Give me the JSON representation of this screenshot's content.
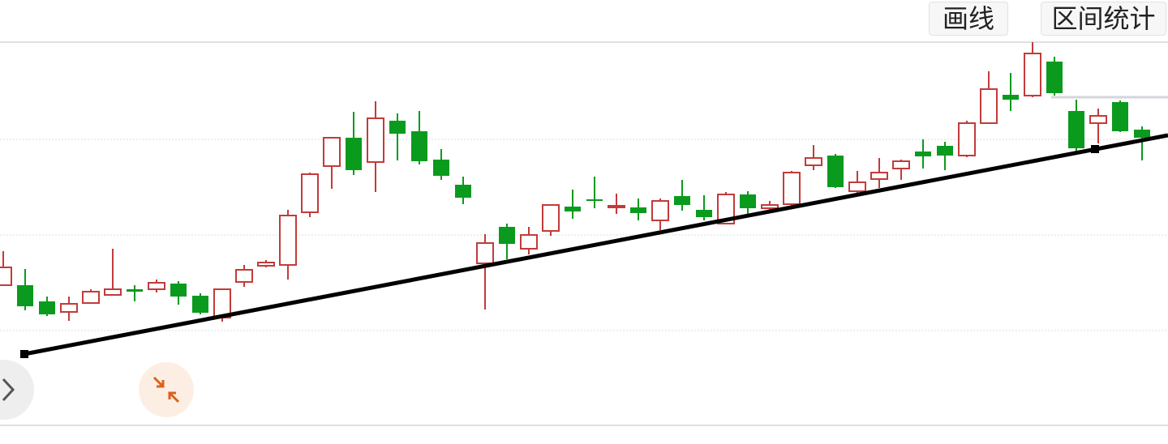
{
  "toolbar": {
    "draw_button": "画线",
    "range_button": "区间统计"
  },
  "chart_data": {
    "type": "candlestick",
    "ylim": [
      0,
      473
    ],
    "gridlines": [
      117,
      235,
      353
    ],
    "up_color": "#c23b3b",
    "down_color": "#0a9a1e",
    "open": [
      173,
      173,
      153,
      140,
      151,
      161,
      168,
      168,
      175,
      160,
      133,
      177,
      197,
      198,
      263,
      320,
      355,
      325,
      376,
      363,
      328,
      297,
      200,
      245,
      218,
      240,
      270,
      279,
      269,
      269,
      253,
      283,
      266,
      249,
      285,
      268,
      273,
      321,
      333,
      289,
      304,
      317,
      338,
      345,
      333,
      373,
      408,
      407,
      449,
      388,
      373,
      399,
      365
    ],
    "high": [
      215,
      193,
      159,
      159,
      168,
      218,
      173,
      180,
      178,
      163,
      169,
      198,
      204,
      266,
      312,
      355,
      387,
      400,
      385,
      388,
      341,
      307,
      236,
      249,
      245,
      273,
      291,
      307,
      286,
      280,
      280,
      303,
      284,
      288,
      289,
      277,
      314,
      346,
      335,
      314,
      330,
      328,
      353,
      350,
      376,
      437,
      435,
      473,
      455,
      402,
      391,
      401,
      369
    ],
    "low": [
      173,
      142,
      135,
      129,
      150,
      160,
      153,
      164,
      149,
      137,
      128,
      171,
      195,
      180,
      257,
      292,
      309,
      288,
      327,
      322,
      303,
      273,
      143,
      205,
      211,
      234,
      255,
      268,
      261,
      253,
      241,
      265,
      253,
      248,
      260,
      265,
      271,
      315,
      293,
      287,
      293,
      303,
      317,
      315,
      331,
      372,
      388,
      405,
      407,
      335,
      348,
      362,
      327
    ],
    "close": [
      195,
      147,
      137,
      150,
      165,
      168,
      165,
      176,
      159,
      139,
      168,
      192,
      201,
      259,
      310,
      355,
      315,
      379,
      360,
      326,
      308,
      281,
      225,
      224,
      235,
      272,
      264,
      278,
      271,
      262,
      277,
      272,
      257,
      285,
      268,
      272,
      312,
      330,
      294,
      300,
      312,
      326,
      332,
      333,
      373,
      415,
      402,
      459,
      410,
      342,
      382,
      363,
      355
    ]
  }
}
